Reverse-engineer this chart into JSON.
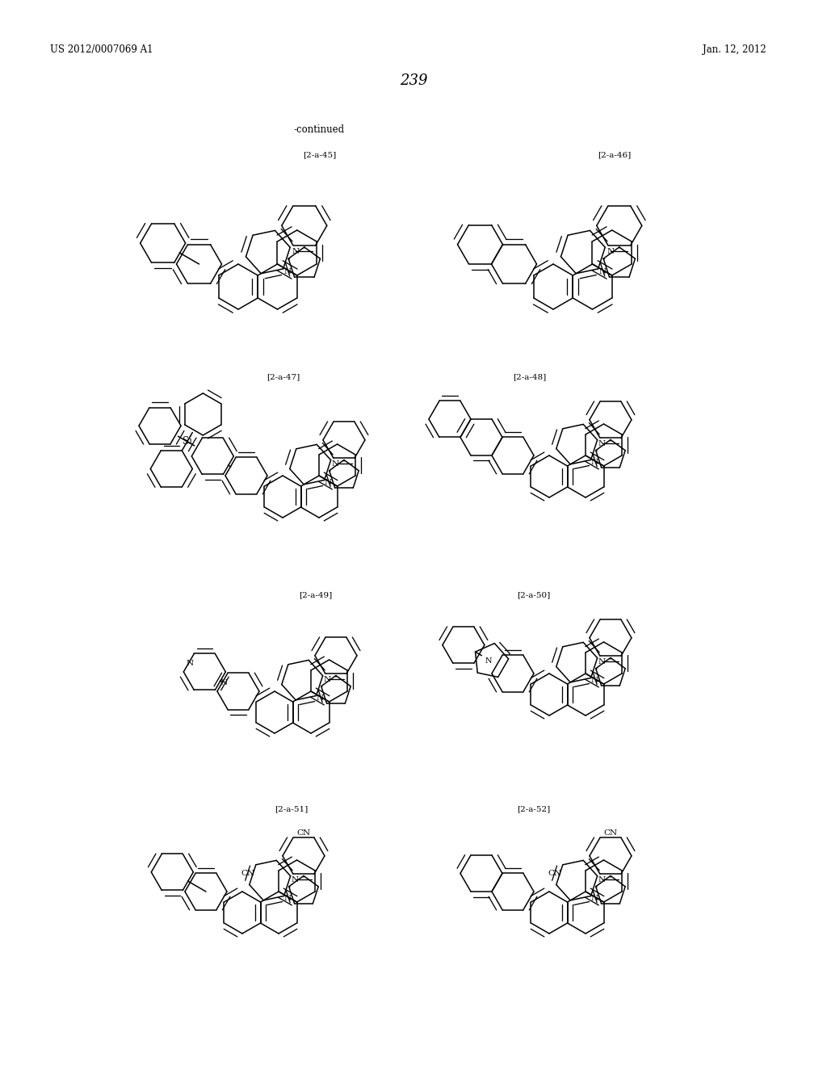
{
  "page_number": "239",
  "patent_number": "US 2012/0007069 A1",
  "patent_date": "Jan. 12, 2012",
  "continued_label": "-continued",
  "background_color": "#ffffff",
  "text_color": "#000000",
  "label_45": "[2-a-45]",
  "label_46": "[2-a-46]",
  "label_47": "[2-a-47]",
  "label_48": "[2-a-48]",
  "label_49": "[2-a-49]",
  "label_50": "[2-a-50]",
  "label_51": "[2-a-51]",
  "label_52": "[2-a-52]"
}
